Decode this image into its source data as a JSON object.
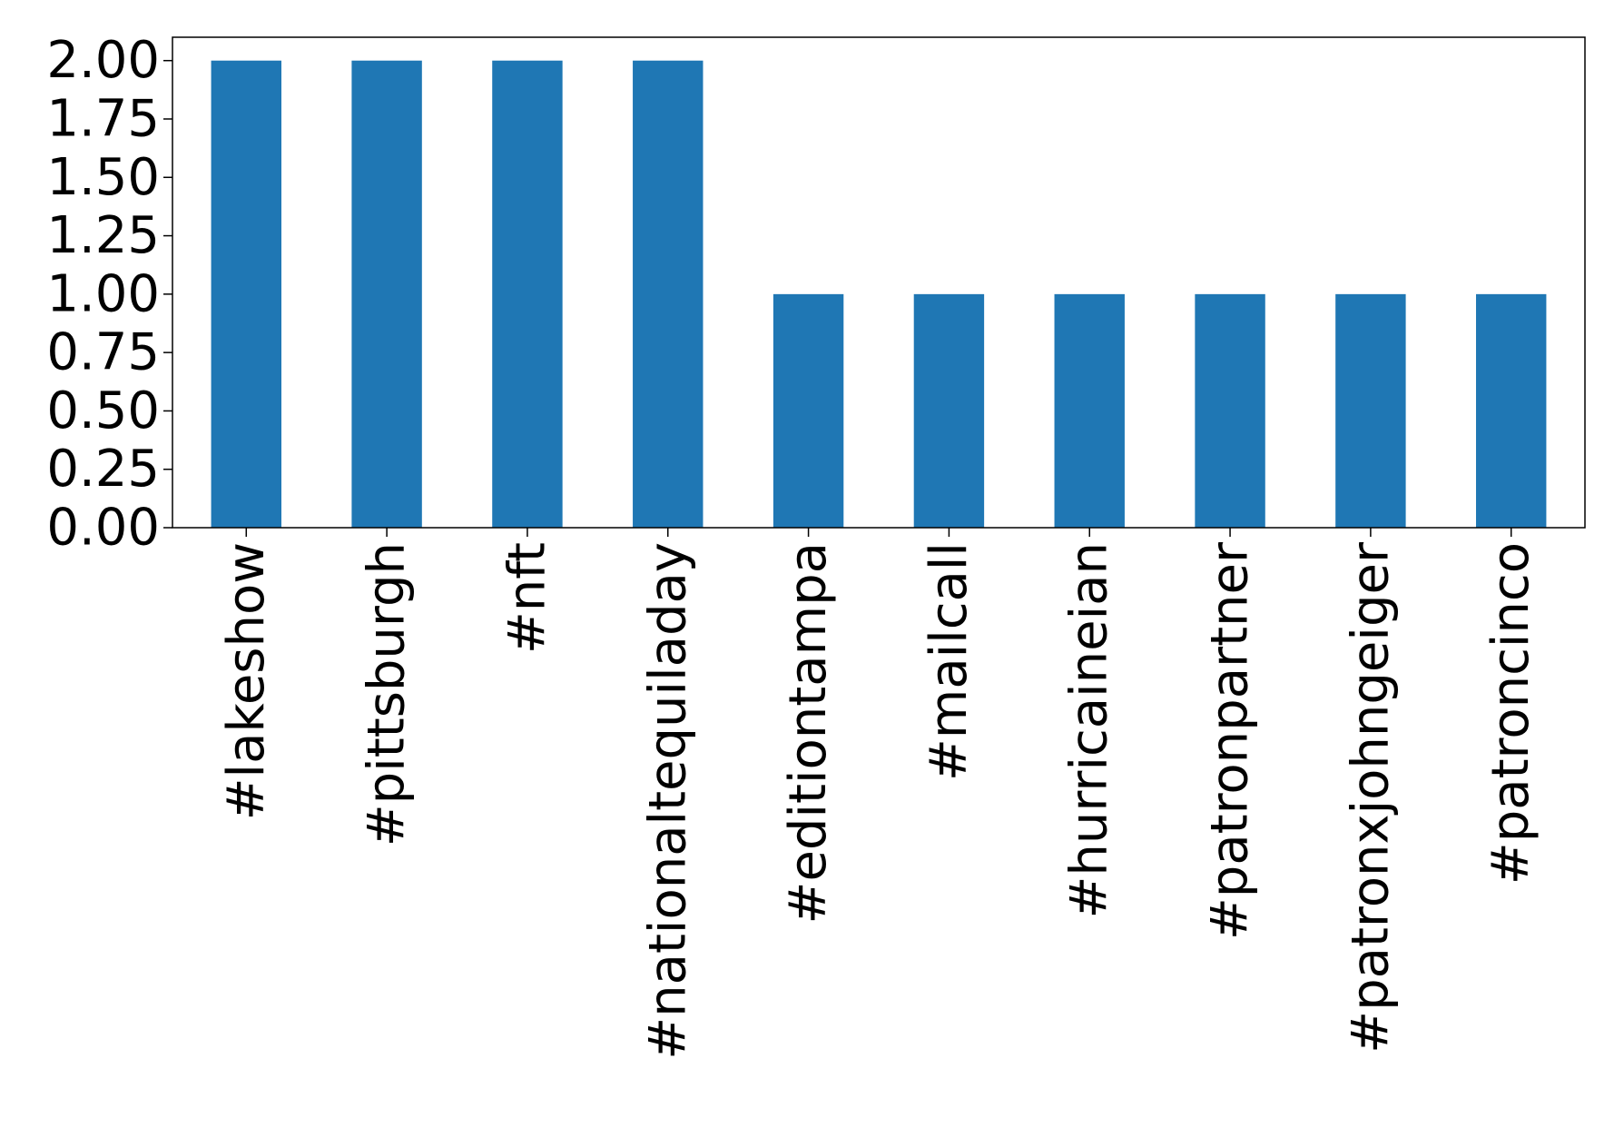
{
  "chart_data": {
    "type": "bar",
    "title": "",
    "xlabel": "",
    "ylabel": "",
    "categories": [
      "#lakeshow",
      "#pittsburgh",
      "#nft",
      "#nationaltequiladay",
      "#editiontampa",
      "#mailcall",
      "#hurricaineian",
      "#patronpartner",
      "#patronxjohngeiger",
      "#patroncinco"
    ],
    "values": [
      2,
      2,
      2,
      2,
      1,
      1,
      1,
      1,
      1,
      1
    ],
    "ylim": [
      0,
      2.1
    ],
    "yticks": [
      "0.00",
      "0.25",
      "0.50",
      "0.75",
      "1.00",
      "1.25",
      "1.50",
      "1.75",
      "2.00"
    ],
    "ytick_values": [
      0,
      0.25,
      0.5,
      0.75,
      1.0,
      1.25,
      1.5,
      1.75,
      2.0
    ],
    "bar_color": "#1f77b4",
    "grid": false,
    "legend": false,
    "x_tick_rotation": "vertical"
  }
}
